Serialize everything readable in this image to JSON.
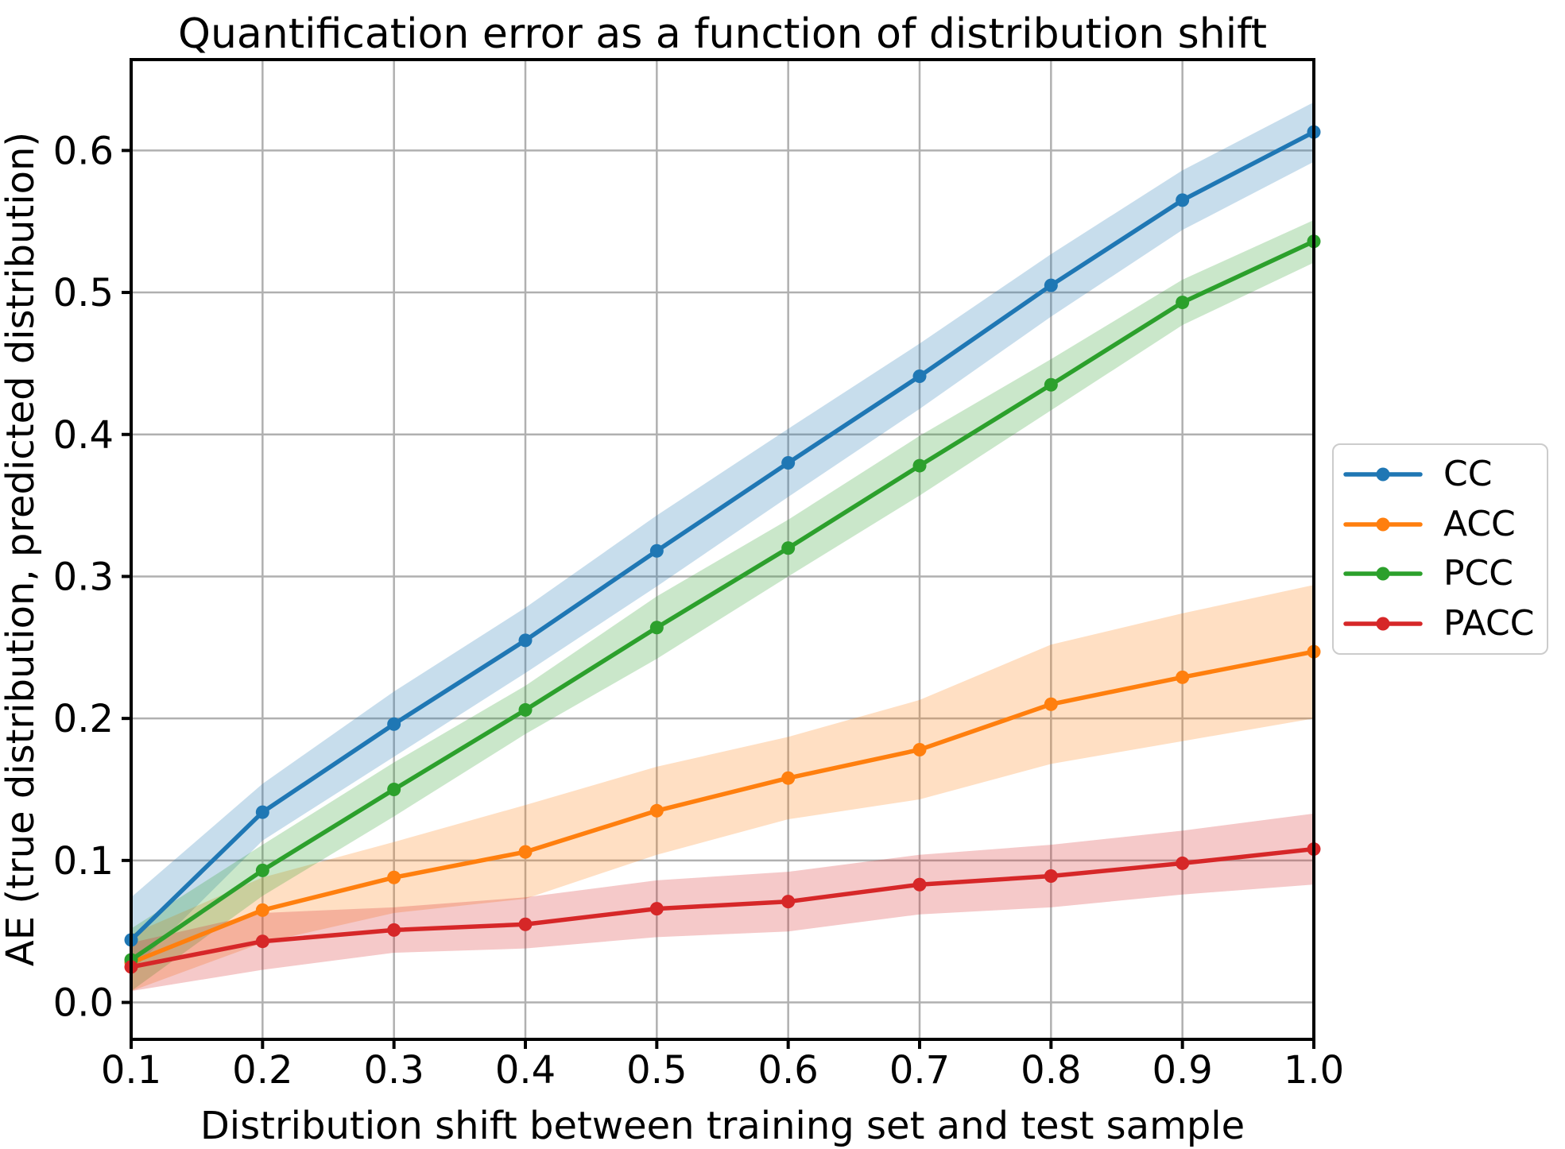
{
  "figure": {
    "background": "#ffffff"
  },
  "chart_data": {
    "type": "line",
    "title": "Quantification error as a function of distribution shift",
    "xlabel": "Distribution shift between training set and test sample",
    "ylabel": "AE (true distribution, predicted distribution)",
    "x": [
      0.1,
      0.2,
      0.3,
      0.4,
      0.5,
      0.6,
      0.7,
      0.8,
      0.9,
      1.0
    ],
    "xticks": [
      "0.1",
      "0.2",
      "0.3",
      "0.4",
      "0.5",
      "0.6",
      "0.7",
      "0.8",
      "0.9",
      "1.0"
    ],
    "yticks": [
      "0.0",
      "0.1",
      "0.2",
      "0.3",
      "0.4",
      "0.5",
      "0.6"
    ],
    "xlim": [
      0.1,
      1.0
    ],
    "ylim": [
      -0.026,
      0.664
    ],
    "grid": true,
    "grid_color": "#b0b0b0",
    "legend_position": "right-outside",
    "series": [
      {
        "name": "CC",
        "color": "#1f77b4",
        "values": [
          0.044,
          0.134,
          0.196,
          0.255,
          0.318,
          0.38,
          0.441,
          0.505,
          0.565,
          0.613
        ],
        "band_lo": [
          0.022,
          0.114,
          0.173,
          0.232,
          0.293,
          0.356,
          0.418,
          0.483,
          0.544,
          0.592
        ],
        "band_hi": [
          0.074,
          0.154,
          0.219,
          0.278,
          0.343,
          0.404,
          0.464,
          0.527,
          0.586,
          0.634
        ]
      },
      {
        "name": "ACC",
        "color": "#ff7f0e",
        "values": [
          0.028,
          0.065,
          0.088,
          0.106,
          0.135,
          0.158,
          0.178,
          0.21,
          0.229,
          0.247
        ],
        "band_lo": [
          0.008,
          0.042,
          0.063,
          0.073,
          0.104,
          0.129,
          0.143,
          0.168,
          0.184,
          0.2
        ],
        "band_hi": [
          0.048,
          0.088,
          0.113,
          0.139,
          0.166,
          0.187,
          0.213,
          0.252,
          0.274,
          0.294
        ]
      },
      {
        "name": "PCC",
        "color": "#2ca02c",
        "values": [
          0.03,
          0.093,
          0.15,
          0.206,
          0.264,
          0.32,
          0.378,
          0.435,
          0.493,
          0.536
        ],
        "band_lo": [
          0.008,
          0.075,
          0.131,
          0.189,
          0.242,
          0.3,
          0.357,
          0.417,
          0.477,
          0.521
        ],
        "band_hi": [
          0.052,
          0.111,
          0.169,
          0.223,
          0.286,
          0.34,
          0.399,
          0.453,
          0.509,
          0.551
        ]
      },
      {
        "name": "PACC",
        "color": "#d62728",
        "values": [
          0.025,
          0.043,
          0.051,
          0.055,
          0.066,
          0.071,
          0.083,
          0.089,
          0.098,
          0.108
        ],
        "band_lo": [
          0.008,
          0.023,
          0.035,
          0.038,
          0.046,
          0.05,
          0.062,
          0.067,
          0.076,
          0.083
        ],
        "band_hi": [
          0.042,
          0.063,
          0.067,
          0.074,
          0.086,
          0.092,
          0.104,
          0.111,
          0.121,
          0.133
        ]
      }
    ]
  }
}
